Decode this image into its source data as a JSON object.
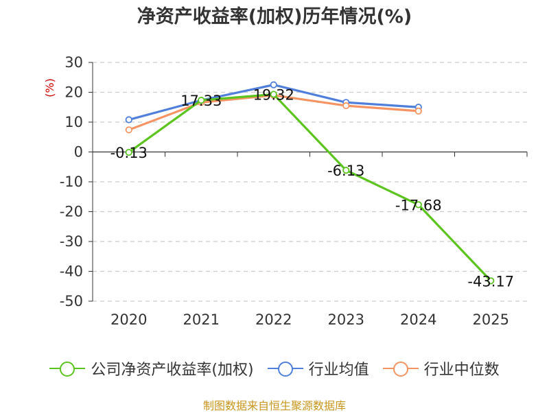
{
  "chart_data": {
    "type": "line",
    "title": "净资产收益率(加权)历年情况(%)",
    "ylabel": "(%)",
    "xlabel": "",
    "categories": [
      "2020",
      "2021",
      "2022",
      "2023",
      "2024",
      "2025"
    ],
    "ylim": [
      -50,
      30
    ],
    "yticks": [
      30,
      20,
      10,
      0,
      -10,
      -20,
      -30,
      -40,
      -50
    ],
    "grid": true,
    "legend_position": "bottom",
    "series": [
      {
        "name": "公司净资产收益率(加权)",
        "color": "#5cc41e",
        "values": [
          -0.13,
          17.33,
          19.32,
          -6.13,
          -17.68,
          -43.17
        ],
        "data_labels": [
          "-0.13",
          "17.33",
          "19.32",
          "-6.13",
          "-17.68",
          "-43.17"
        ]
      },
      {
        "name": "行业均值",
        "color": "#4f7fdb",
        "values": [
          10.8,
          17.3,
          22.5,
          16.6,
          15.0,
          null
        ]
      },
      {
        "name": "行业中位数",
        "color": "#f59363",
        "values": [
          7.4,
          16.6,
          19.0,
          15.5,
          13.7,
          null
        ]
      }
    ]
  },
  "source": "制图数据来自恒生聚源数据库"
}
